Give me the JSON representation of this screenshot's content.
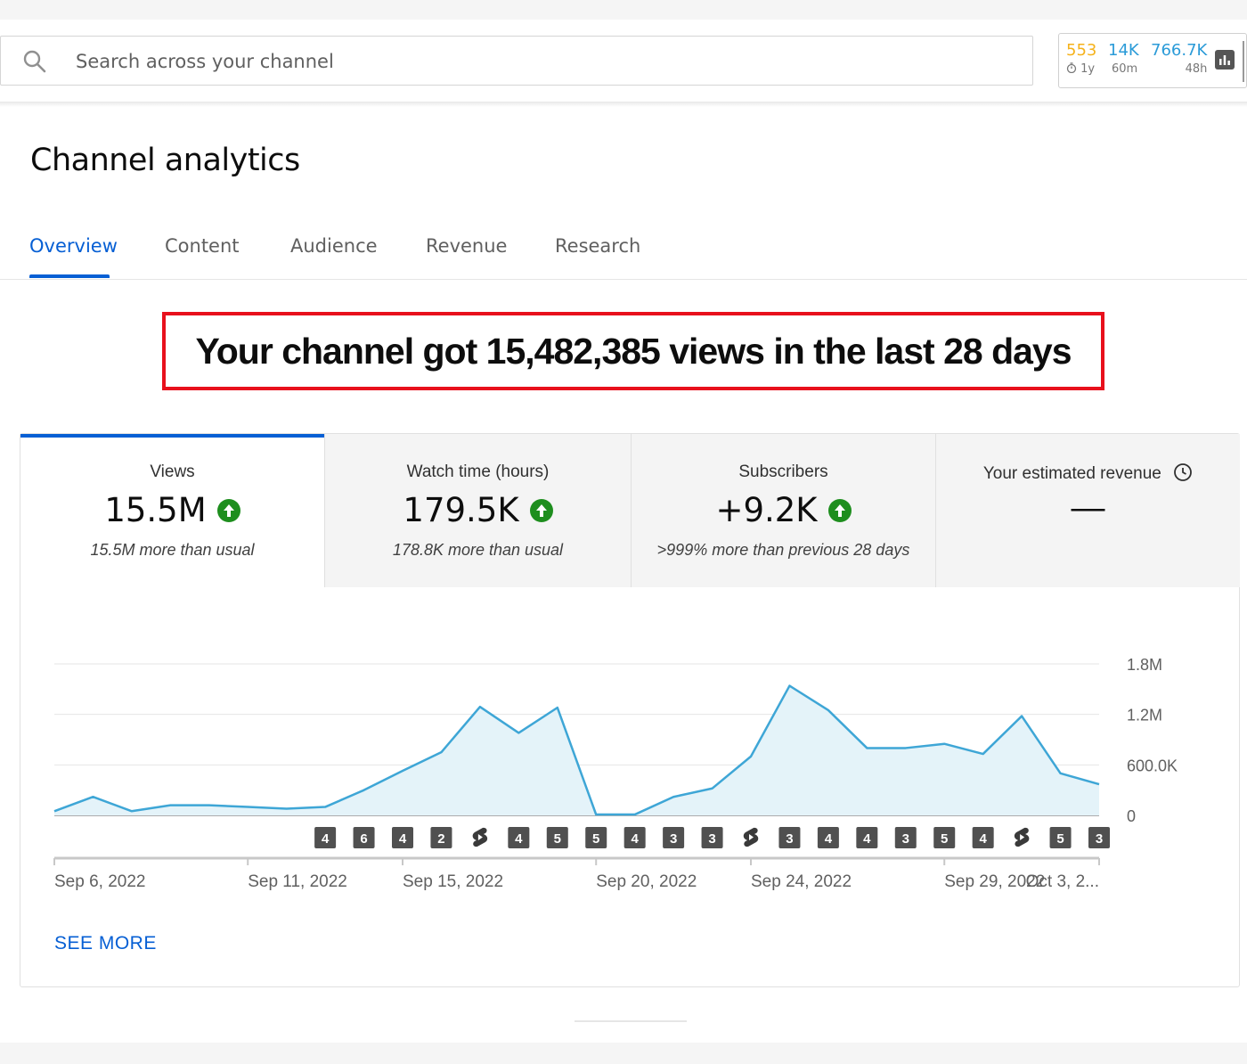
{
  "search": {
    "placeholder": "Search across your channel"
  },
  "stats_widget": {
    "items": [
      {
        "value": "553",
        "sub": "1y",
        "color": "#f5b21b",
        "sub_icon": "timer-icon"
      },
      {
        "value": "14K",
        "sub": "60m",
        "color": "#2b9bd8"
      },
      {
        "value": "766.7K",
        "sub": "48h",
        "color": "#2b9bd8"
      }
    ],
    "icon": "bar-chart-icon"
  },
  "page_title": "Channel analytics",
  "tabs": [
    {
      "label": "Overview",
      "active": true
    },
    {
      "label": "Content"
    },
    {
      "label": "Audience"
    },
    {
      "label": "Revenue"
    },
    {
      "label": "Research"
    }
  ],
  "headline": "Your channel got 15,482,385 views in the last 28 days",
  "metrics": [
    {
      "label": "Views",
      "value": "15.5M",
      "sub": "15.5M more than usual",
      "trend": "up",
      "selected": true
    },
    {
      "label": "Watch time (hours)",
      "value": "179.5K",
      "sub": "178.8K more than usual",
      "trend": "up"
    },
    {
      "label": "Subscribers",
      "value": "+9.2K",
      "sub": ">999% more than previous 28 days",
      "trend": "up"
    },
    {
      "label": "Your estimated revenue",
      "value": "—",
      "icon": "clock-icon"
    }
  ],
  "chart_data": {
    "type": "area",
    "title": "",
    "xlabel": "",
    "ylabel": "",
    "ylim": [
      0,
      1800000
    ],
    "yticks": [
      0,
      600000,
      1200000,
      1800000
    ],
    "ytick_labels": [
      "0",
      "600.0K",
      "1.2M",
      "1.8M"
    ],
    "y_axis_side": "right",
    "grid": true,
    "color": "#3ea6d6",
    "fill_color": "#e4f3f9",
    "x": [
      "Sep 6, 2022",
      "Sep 7, 2022",
      "Sep 8, 2022",
      "Sep 9, 2022",
      "Sep 10, 2022",
      "Sep 11, 2022",
      "Sep 12, 2022",
      "Sep 13, 2022",
      "Sep 14, 2022",
      "Sep 15, 2022",
      "Sep 16, 2022",
      "Sep 17, 2022",
      "Sep 18, 2022",
      "Sep 19, 2022",
      "Sep 20, 2022",
      "Sep 21, 2022",
      "Sep 22, 2022",
      "Sep 23, 2022",
      "Sep 24, 2022",
      "Sep 25, 2022",
      "Sep 26, 2022",
      "Sep 27, 2022",
      "Sep 28, 2022",
      "Sep 29, 2022",
      "Sep 30, 2022",
      "Oct 1, 2022",
      "Oct 2, 2022",
      "Oct 3, 2022"
    ],
    "values": [
      50000,
      220000,
      50000,
      120000,
      120000,
      100000,
      80000,
      100000,
      300000,
      530000,
      750000,
      1290000,
      980000,
      1280000,
      10000,
      10000,
      220000,
      320000,
      700000,
      1540000,
      1250000,
      800000,
      800000,
      850000,
      730000,
      1180000,
      500000,
      370000
    ],
    "x_tick_labels": [
      "Sep 6, 2022",
      "Sep 11, 2022",
      "Sep 15, 2022",
      "Sep 20, 2022",
      "Sep 24, 2022",
      "Sep 29, 2022",
      "Oct 3, 2..."
    ],
    "x_tick_indices": [
      0,
      5,
      9,
      14,
      18,
      23,
      27
    ],
    "upload_markers": [
      {
        "index": 7,
        "label": "4"
      },
      {
        "index": 8,
        "label": "6"
      },
      {
        "index": 9,
        "label": "4"
      },
      {
        "index": 10,
        "label": "2"
      },
      {
        "index": 11,
        "label": "shorts"
      },
      {
        "index": 12,
        "label": "4"
      },
      {
        "index": 13,
        "label": "5"
      },
      {
        "index": 14,
        "label": "5"
      },
      {
        "index": 15,
        "label": "4"
      },
      {
        "index": 16,
        "label": "3"
      },
      {
        "index": 17,
        "label": "3"
      },
      {
        "index": 18,
        "label": "shorts"
      },
      {
        "index": 19,
        "label": "3"
      },
      {
        "index": 20,
        "label": "4"
      },
      {
        "index": 21,
        "label": "4"
      },
      {
        "index": 22,
        "label": "3"
      },
      {
        "index": 23,
        "label": "5"
      },
      {
        "index": 24,
        "label": "4"
      },
      {
        "index": 25,
        "label": "shorts"
      },
      {
        "index": 26,
        "label": "5"
      },
      {
        "index": 27,
        "label": "3"
      }
    ]
  },
  "see_more": "SEE MORE"
}
